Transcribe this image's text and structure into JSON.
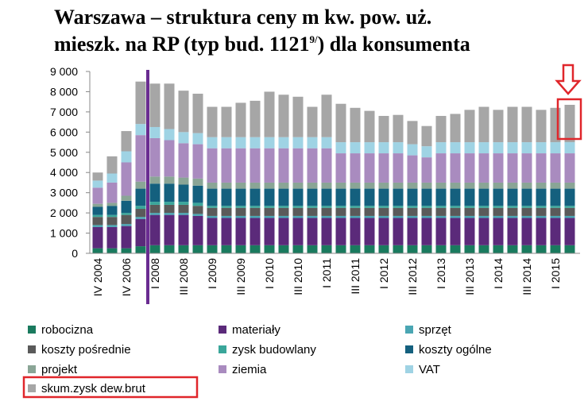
{
  "chart_data": {
    "type": "stacked_bar",
    "title_line1": "Warszawa – struktura ceny m kw. pow. uż.",
    "title_line2": "mieszk. na RP (typ bud. 1121",
    "title_sup": "9/",
    "title_line2_end": ") dla konsumenta",
    "categories": [
      "IV 2004",
      null,
      "IV 2006",
      null,
      "I 2008",
      null,
      "III 2008",
      null,
      "I 2009",
      null,
      "III 2009",
      null,
      "I 2010",
      null,
      "III 2010",
      null,
      "I 2011",
      null,
      "III 2011",
      null,
      "I 2012",
      null,
      "III 2012",
      null,
      "I 2013",
      null,
      "III 2013",
      null,
      "I 2014",
      null,
      "III 2014",
      null,
      "I 2015",
      null
    ],
    "ylim": [
      0,
      9000
    ],
    "yticks": [
      {
        "value": 0,
        "label": "0"
      },
      {
        "value": 1000,
        "label": "1 000"
      },
      {
        "value": 2000,
        "label": "2 000"
      },
      {
        "value": 3000,
        "label": "3 000"
      },
      {
        "value": 4000,
        "label": "4 000"
      },
      {
        "value": 5000,
        "label": "5 000"
      },
      {
        "value": 6000,
        "label": "6 000"
      },
      {
        "value": 7000,
        "label": "7 000"
      },
      {
        "value": 8000,
        "label": "8 000"
      },
      {
        "value": 9000,
        "label": "9 000"
      }
    ],
    "series": [
      {
        "name": "robocizna",
        "color": "#1a7a5e",
        "values": [
          250,
          250,
          250,
          350,
          400,
          400,
          400,
          400,
          400,
          400,
          400,
          400,
          400,
          400,
          400,
          400,
          400,
          400,
          400,
          400,
          400,
          400,
          400,
          400,
          400,
          400,
          400,
          400,
          400,
          400,
          400,
          400,
          400,
          400
        ]
      },
      {
        "name": "materiały",
        "color": "#5b2a7a",
        "values": [
          1050,
          1050,
          1100,
          1350,
          1500,
          1500,
          1500,
          1450,
          1350,
          1350,
          1350,
          1350,
          1350,
          1350,
          1350,
          1350,
          1350,
          1350,
          1350,
          1350,
          1350,
          1350,
          1350,
          1350,
          1350,
          1350,
          1350,
          1350,
          1350,
          1350,
          1350,
          1350,
          1350,
          1350
        ]
      },
      {
        "name": "sprzęt",
        "color": "#4aa6b3",
        "values": [
          100,
          100,
          100,
          100,
          100,
          100,
          100,
          100,
          100,
          100,
          100,
          100,
          100,
          100,
          100,
          100,
          100,
          100,
          100,
          100,
          100,
          100,
          100,
          100,
          100,
          100,
          100,
          100,
          100,
          100,
          100,
          100,
          100,
          100
        ]
      },
      {
        "name": "koszty pośrednie",
        "color": "#5a5a5a",
        "values": [
          400,
          400,
          450,
          400,
          400,
          400,
          400,
          400,
          400,
          400,
          400,
          400,
          400,
          400,
          400,
          400,
          400,
          400,
          400,
          400,
          400,
          400,
          400,
          400,
          400,
          400,
          400,
          400,
          400,
          400,
          400,
          400,
          400,
          400
        ]
      },
      {
        "name": "zysk budowlany",
        "color": "#3aa69a",
        "values": [
          100,
          100,
          100,
          150,
          150,
          150,
          150,
          150,
          100,
          100,
          100,
          100,
          100,
          100,
          100,
          100,
          100,
          100,
          100,
          100,
          100,
          100,
          100,
          100,
          100,
          100,
          100,
          100,
          100,
          100,
          100,
          100,
          100,
          100
        ]
      },
      {
        "name": "koszty ogólne",
        "color": "#14607e",
        "values": [
          400,
          450,
          600,
          850,
          900,
          900,
          850,
          850,
          850,
          850,
          850,
          850,
          850,
          850,
          850,
          850,
          850,
          850,
          850,
          850,
          850,
          850,
          850,
          850,
          850,
          850,
          850,
          850,
          850,
          850,
          850,
          850,
          850,
          850
        ]
      },
      {
        "name": "projekt",
        "color": "#8aa596",
        "values": [
          150,
          150,
          250,
          350,
          350,
          350,
          350,
          350,
          300,
          300,
          300,
          300,
          300,
          300,
          300,
          300,
          300,
          300,
          300,
          300,
          300,
          300,
          300,
          300,
          300,
          300,
          300,
          300,
          300,
          300,
          300,
          300,
          300,
          300
        ]
      },
      {
        "name": "ziemia",
        "color": "#a98bbf",
        "values": [
          800,
          1000,
          1650,
          2300,
          1900,
          1800,
          1700,
          1700,
          1700,
          1700,
          1700,
          1700,
          1700,
          1700,
          1700,
          1700,
          1700,
          1450,
          1450,
          1450,
          1450,
          1450,
          1350,
          1250,
          1450,
          1450,
          1450,
          1450,
          1450,
          1450,
          1450,
          1450,
          1450,
          1450
        ]
      },
      {
        "name": "VAT",
        "color": "#9fd3e4",
        "values": [
          350,
          450,
          550,
          550,
          550,
          550,
          550,
          550,
          550,
          550,
          550,
          550,
          550,
          550,
          550,
          550,
          550,
          550,
          550,
          550,
          550,
          550,
          550,
          550,
          550,
          550,
          550,
          550,
          550,
          550,
          550,
          550,
          550,
          550
        ]
      },
      {
        "name": "skum.zysk dew.brut",
        "color": "#a6a6a6",
        "values": [
          400,
          850,
          1000,
          2100,
          2150,
          2250,
          2050,
          1950,
          1500,
          1500,
          1700,
          1800,
          2250,
          2100,
          2000,
          1500,
          2100,
          1900,
          1700,
          1550,
          1300,
          1350,
          1150,
          1000,
          1300,
          1400,
          1600,
          1750,
          1600,
          1750,
          1750,
          1600,
          1700,
          1850
        ]
      }
    ]
  }
}
